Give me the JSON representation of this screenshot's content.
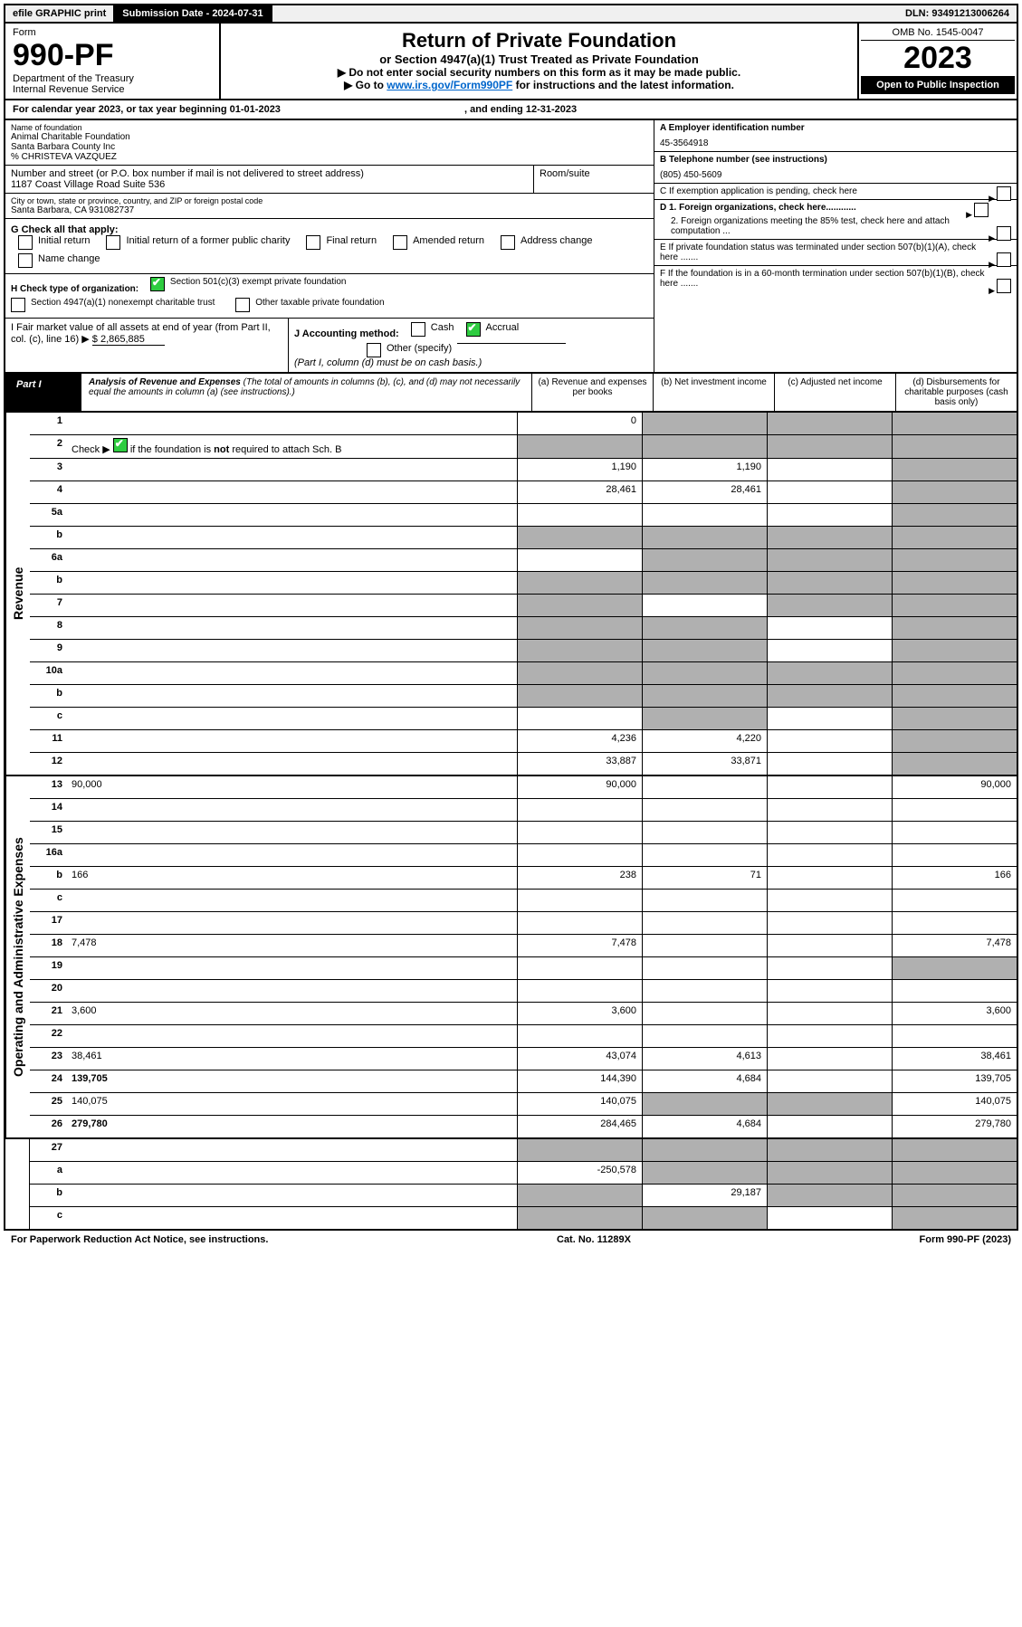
{
  "top": {
    "efile": "efile GRAPHIC print",
    "subdate_label": "Submission Date - 2024-07-31",
    "dln": "DLN: 93491213006264"
  },
  "header": {
    "form_word": "Form",
    "form_no": "990-PF",
    "dept": "Department of the Treasury",
    "irs": "Internal Revenue Service",
    "title": "Return of Private Foundation",
    "subtitle": "or Section 4947(a)(1) Trust Treated as Private Foundation",
    "note1": "▶ Do not enter social security numbers on this form as it may be made public.",
    "note2_pre": "▶ Go to ",
    "note2_link": "www.irs.gov/Form990PF",
    "note2_post": " for instructions and the latest information.",
    "omb": "OMB No. 1545-0047",
    "year": "2023",
    "open_pub": "Open to Public Inspection"
  },
  "calyear": {
    "text_a": "For calendar year 2023, or tax year beginning ",
    "begin": "01-01-2023",
    "text_b": " , and ending ",
    "end": "12-31-2023"
  },
  "entity": {
    "name_lbl": "Name of foundation",
    "name1": "Animal Charitable Foundation",
    "name2": "Santa Barbara County Inc",
    "name3": "% CHRISTEVA VAZQUEZ",
    "addr_lbl": "Number and street (or P.O. box number if mail is not delivered to street address)",
    "addr": "1187 Coast Village Road Suite 536",
    "room_lbl": "Room/suite",
    "city_lbl": "City or town, state or province, country, and ZIP or foreign postal code",
    "city": "Santa Barbara, CA  931082737",
    "ein_lbl": "A Employer identification number",
    "ein": "45-3564918",
    "phone_lbl": "B Telephone number (see instructions)",
    "phone": "(805) 450-5609",
    "c_lbl": "C If exemption application is pending, check here",
    "d1_lbl": "D 1. Foreign organizations, check here............",
    "d2_lbl": "2. Foreign organizations meeting the 85% test, check here and attach computation ...",
    "e_lbl": "E  If private foundation status was terminated under section 507(b)(1)(A), check here .......",
    "f_lbl": "F  If the foundation is in a 60-month termination under section 507(b)(1)(B), check here ......."
  },
  "g": {
    "label": "G Check all that apply:",
    "opts": [
      "Initial return",
      "Initial return of a former public charity",
      "Final return",
      "Amended return",
      "Address change",
      "Name change"
    ]
  },
  "h": {
    "label": "H Check type of organization:",
    "o1": "Section 501(c)(3) exempt private foundation",
    "o2": "Section 4947(a)(1) nonexempt charitable trust",
    "o3": "Other taxable private foundation"
  },
  "i": {
    "label": "I Fair market value of all assets at end of year (from Part II, col. (c), line 16) ",
    "arrow": "▶",
    "val": "$  2,865,885"
  },
  "j": {
    "label": "J Accounting method:",
    "cash": "Cash",
    "accrual": "Accrual",
    "other": "Other (specify)",
    "note": "(Part I, column (d) must be on cash basis.)"
  },
  "part1": {
    "label": "Part I",
    "title": "Analysis of Revenue and Expenses",
    "note": " (The total of amounts in columns (b), (c), and (d) may not necessarily equal the amounts in column (a) (see instructions).)",
    "col_a": "(a)  Revenue and expenses per books",
    "col_b": "(b)  Net investment income",
    "col_c": "(c)  Adjusted net income",
    "col_d": "(d)  Disbursements for charitable purposes (cash basis only)"
  },
  "side": {
    "revenue": "Revenue",
    "opex": "Operating and Administrative Expenses"
  },
  "rows": {
    "r1": {
      "n": "1",
      "d": "",
      "a": "0",
      "b": "",
      "c": "",
      "sb": true,
      "sc": true,
      "sd": true
    },
    "r2": {
      "n": "2",
      "d": "",
      "a": "",
      "b": "",
      "c": "",
      "sa": true,
      "sb": true,
      "sc": true,
      "sd": true,
      "checked": true
    },
    "r3": {
      "n": "3",
      "d": "",
      "a": "1,190",
      "b": "1,190",
      "c": "",
      "sd": true
    },
    "r4": {
      "n": "4",
      "d": "",
      "a": "28,461",
      "b": "28,461",
      "c": "",
      "sd": true
    },
    "r5a": {
      "n": "5a",
      "d": "",
      "a": "",
      "b": "",
      "c": "",
      "sd": true
    },
    "r5b": {
      "n": "b",
      "d": "",
      "a": "",
      "b": "",
      "c": "",
      "sa": true,
      "sb": true,
      "sc": true,
      "sd": true
    },
    "r6a": {
      "n": "6a",
      "d": "",
      "a": "",
      "b": "",
      "c": "",
      "sb": true,
      "sc": true,
      "sd": true
    },
    "r6b": {
      "n": "b",
      "d": "",
      "a": "",
      "b": "",
      "c": "",
      "sa": true,
      "sb": true,
      "sc": true,
      "sd": true
    },
    "r7": {
      "n": "7",
      "d": "",
      "a": "",
      "b": "",
      "c": "",
      "sa": true,
      "sc": true,
      "sd": true
    },
    "r8": {
      "n": "8",
      "d": "",
      "a": "",
      "b": "",
      "c": "",
      "sa": true,
      "sb": true,
      "sd": true
    },
    "r9": {
      "n": "9",
      "d": "",
      "a": "",
      "b": "",
      "c": "",
      "sa": true,
      "sb": true,
      "sd": true
    },
    "r10a": {
      "n": "10a",
      "d": "",
      "a": "",
      "b": "",
      "c": "",
      "sa": true,
      "sb": true,
      "sc": true,
      "sd": true
    },
    "r10b": {
      "n": "b",
      "d": "",
      "a": "",
      "b": "",
      "c": "",
      "sa": true,
      "sb": true,
      "sc": true,
      "sd": true
    },
    "r10c": {
      "n": "c",
      "d": "",
      "a": "",
      "b": "",
      "c": "",
      "sb": true,
      "sd": true
    },
    "r11": {
      "n": "11",
      "d": "",
      "a": "4,236",
      "b": "4,220",
      "c": "",
      "sd": true
    },
    "r12": {
      "n": "12",
      "d": "",
      "a": "33,887",
      "b": "33,871",
      "c": "",
      "sd": true,
      "bold": true
    },
    "r13": {
      "n": "13",
      "d": "90,000",
      "a": "90,000",
      "b": "",
      "c": ""
    },
    "r14": {
      "n": "14",
      "d": "",
      "a": "",
      "b": "",
      "c": ""
    },
    "r15": {
      "n": "15",
      "d": "",
      "a": "",
      "b": "",
      "c": ""
    },
    "r16a": {
      "n": "16a",
      "d": "",
      "a": "",
      "b": "",
      "c": ""
    },
    "r16b": {
      "n": "b",
      "d": "166",
      "a": "238",
      "b": "71",
      "c": ""
    },
    "r16c": {
      "n": "c",
      "d": "",
      "a": "",
      "b": "",
      "c": ""
    },
    "r17": {
      "n": "17",
      "d": "",
      "a": "",
      "b": "",
      "c": ""
    },
    "r18": {
      "n": "18",
      "d": "7,478",
      "a": "7,478",
      "b": "",
      "c": ""
    },
    "r19": {
      "n": "19",
      "d": "",
      "a": "",
      "b": "",
      "c": "",
      "sd": true
    },
    "r20": {
      "n": "20",
      "d": "",
      "a": "",
      "b": "",
      "c": ""
    },
    "r21": {
      "n": "21",
      "d": "3,600",
      "a": "3,600",
      "b": "",
      "c": ""
    },
    "r22": {
      "n": "22",
      "d": "",
      "a": "",
      "b": "",
      "c": ""
    },
    "r23": {
      "n": "23",
      "d": "38,461",
      "a": "43,074",
      "b": "4,613",
      "c": ""
    },
    "r24": {
      "n": "24",
      "d": "139,705",
      "a": "144,390",
      "b": "4,684",
      "c": "",
      "bold": true
    },
    "r25": {
      "n": "25",
      "d": "140,075",
      "a": "140,075",
      "b": "",
      "c": "",
      "sb": true,
      "sc": true
    },
    "r26": {
      "n": "26",
      "d": "279,780",
      "a": "284,465",
      "b": "4,684",
      "c": "",
      "bold": true
    },
    "r27": {
      "n": "27",
      "d": "",
      "a": "",
      "b": "",
      "c": "",
      "sa": true,
      "sb": true,
      "sc": true,
      "sd": true
    },
    "r27a": {
      "n": "a",
      "d": "",
      "a": "-250,578",
      "b": "",
      "c": "",
      "sb": true,
      "sc": true,
      "sd": true,
      "bold": true
    },
    "r27b": {
      "n": "b",
      "d": "",
      "a": "",
      "b": "29,187",
      "c": "",
      "sa": true,
      "sc": true,
      "sd": true,
      "bold": true
    },
    "r27c": {
      "n": "c",
      "d": "",
      "a": "",
      "b": "",
      "c": "",
      "sa": true,
      "sb": true,
      "sd": true,
      "bold": true
    }
  },
  "footer": {
    "left": "For Paperwork Reduction Act Notice, see instructions.",
    "mid": "Cat. No. 11289X",
    "right": "Form 990-PF (2023)"
  },
  "colors": {
    "shade": "#b0b0b0",
    "check_green": "#2ecc40",
    "link": "#0066cc"
  }
}
